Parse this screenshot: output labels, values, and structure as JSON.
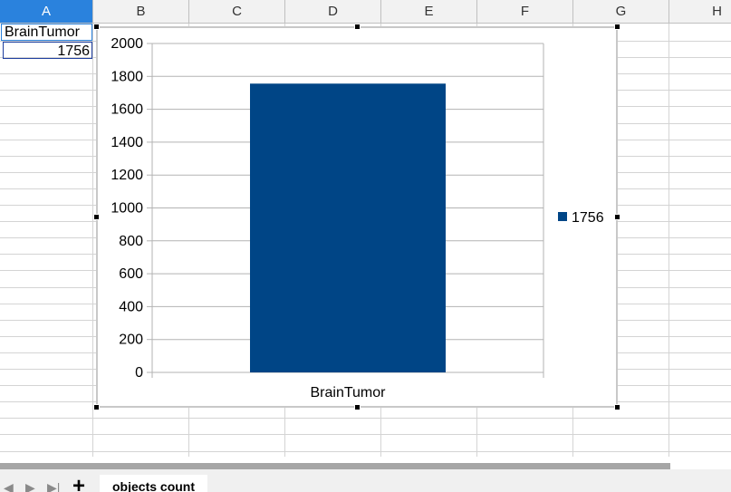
{
  "columns": [
    "A",
    "B",
    "C",
    "D",
    "E",
    "F",
    "G",
    "H"
  ],
  "cells": {
    "a1": "BrainTumor",
    "a2": "1756"
  },
  "sheet_tab": {
    "label": "objects count"
  },
  "colors": {
    "bar": "#004586",
    "selected_header": "#2a82dd"
  },
  "chart_data": {
    "type": "bar",
    "categories": [
      "BrainTumor"
    ],
    "series": [
      {
        "name": "1756",
        "values": [
          1756
        ]
      }
    ],
    "ylim": [
      0,
      2000
    ],
    "yticks": [
      0,
      200,
      400,
      600,
      800,
      1000,
      1200,
      1400,
      1600,
      1800,
      2000
    ],
    "grid": true,
    "legend": "right"
  }
}
